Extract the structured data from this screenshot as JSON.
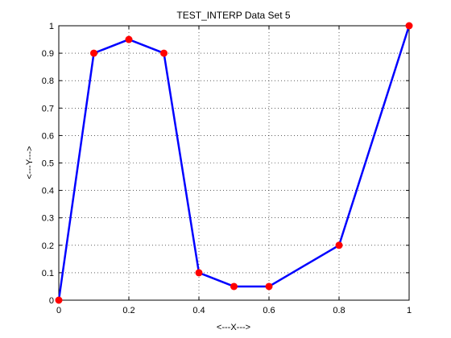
{
  "chart_data": {
    "type": "line",
    "title": "TEST_INTERP Data Set 5",
    "xlabel": "<---X--->",
    "ylabel": "<---Y--->",
    "xlim": [
      0,
      1
    ],
    "ylim": [
      0,
      1
    ],
    "grid": true,
    "x_ticks": [
      0,
      0.2,
      0.4,
      0.6,
      0.8,
      1
    ],
    "x_tick_labels": [
      "0",
      "0.2",
      "0.4",
      "0.6",
      "0.8",
      "1"
    ],
    "y_ticks": [
      0,
      0.1,
      0.2,
      0.3,
      0.4,
      0.5,
      0.6,
      0.7,
      0.8,
      0.9,
      1
    ],
    "y_tick_labels": [
      "0",
      "0.1",
      "0.2",
      "0.3",
      "0.4",
      "0.5",
      "0.6",
      "0.7",
      "0.8",
      "0.9",
      "1"
    ],
    "series": [
      {
        "x": [
          0,
          0.1,
          0.2,
          0.3,
          0.4,
          0.5,
          0.6,
          0.8,
          1.0
        ],
        "y": [
          0,
          0.9,
          0.95,
          0.9,
          0.1,
          0.05,
          0.05,
          0.2,
          1.0
        ],
        "line_color": "#0000ff",
        "marker_color": "#ff0000"
      }
    ]
  }
}
